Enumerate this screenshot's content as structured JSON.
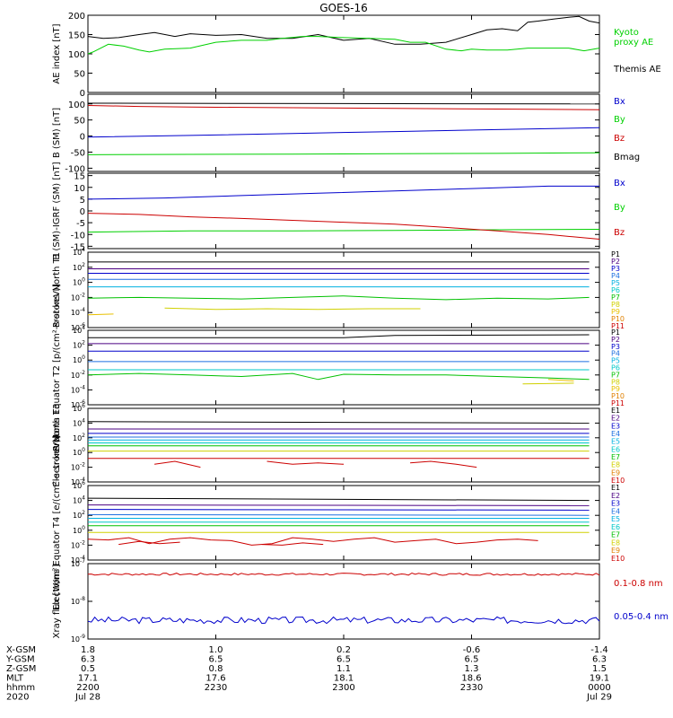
{
  "title": "GOES-16",
  "colors": {
    "black": "#000000",
    "green": "#00d000",
    "blue": "#0000cc",
    "red": "#cc0000",
    "p": [
      "#000000",
      "#4b0082",
      "#0000cc",
      "#1e6fe0",
      "#00b0e0",
      "#00c8c8",
      "#00c000",
      "#d0d000",
      "#e8c000",
      "#e08000",
      "#cc0000"
    ],
    "e": [
      "#000000",
      "#4b0082",
      "#0000cc",
      "#1e6fe0",
      "#00b0e0",
      "#00c8c8",
      "#00c000",
      "#d0d000",
      "#e08000",
      "#cc0000"
    ]
  },
  "chart_data": [
    {
      "type": "line",
      "id": "ae",
      "ylabel": "AE index [nT]",
      "ylim": [
        0,
        200
      ],
      "yticks": [
        "0",
        "50",
        "100",
        "150",
        "200"
      ],
      "legend": [
        {
          "text": "Kyoto",
          "color": "green"
        },
        {
          "text": "proxy AE",
          "color": "green"
        },
        {
          "text": "Themis AE",
          "color": "black"
        }
      ],
      "series": [
        {
          "color": "black",
          "x": [
            0,
            0.03,
            0.06,
            0.1,
            0.13,
            0.17,
            0.2,
            0.25,
            0.3,
            0.35,
            0.4,
            0.45,
            0.5,
            0.55,
            0.6,
            0.65,
            0.7,
            0.75,
            0.78,
            0.81,
            0.84,
            0.86,
            0.88,
            0.91,
            0.94,
            0.96,
            0.98,
            1.0
          ],
          "y": [
            145,
            140,
            142,
            150,
            155,
            145,
            152,
            148,
            150,
            140,
            140,
            150,
            135,
            140,
            125,
            125,
            130,
            150,
            162,
            165,
            160,
            182,
            185,
            190,
            195,
            197,
            185,
            180
          ]
        },
        {
          "color": "green",
          "x": [
            0,
            0.01,
            0.04,
            0.07,
            0.1,
            0.12,
            0.15,
            0.2,
            0.25,
            0.3,
            0.35,
            0.38,
            0.42,
            0.45,
            0.5,
            0.55,
            0.6,
            0.63,
            0.66,
            0.7,
            0.73,
            0.75,
            0.78,
            0.82,
            0.86,
            0.9,
            0.94,
            0.97,
            1.0
          ],
          "y": [
            100,
            105,
            125,
            120,
            110,
            105,
            112,
            115,
            130,
            135,
            135,
            140,
            145,
            145,
            142,
            140,
            138,
            130,
            130,
            112,
            108,
            112,
            110,
            110,
            115,
            115,
            115,
            108,
            115
          ]
        }
      ]
    },
    {
      "type": "line",
      "id": "b_sm",
      "ylabel": "B (SM) [nT]",
      "ylim": [
        -110,
        130
      ],
      "yticks": [
        "-100",
        "-50",
        "0",
        "50",
        "100"
      ],
      "ytickvals": [
        -100,
        -50,
        0,
        50,
        100
      ],
      "legend": [
        {
          "text": "Bx",
          "color": "blue"
        },
        {
          "text": "By",
          "color": "green"
        },
        {
          "text": "Bz",
          "color": "red"
        },
        {
          "text": "Bmag",
          "color": "black"
        }
      ],
      "series": [
        {
          "color": "black",
          "x": [
            0,
            1
          ],
          "y": [
            102,
            100
          ]
        },
        {
          "color": "red",
          "x": [
            0,
            0.1,
            0.2,
            0.4,
            0.6,
            0.8,
            1
          ],
          "y": [
            95,
            92,
            90,
            88,
            86,
            84,
            82
          ]
        },
        {
          "color": "blue",
          "x": [
            0,
            0.2,
            0.4,
            0.6,
            0.8,
            1
          ],
          "y": [
            -3,
            2,
            8,
            14,
            20,
            26
          ]
        },
        {
          "color": "green",
          "x": [
            0,
            0.2,
            0.4,
            0.6,
            0.8,
            1
          ],
          "y": [
            -58,
            -57,
            -56,
            -55,
            -54,
            -52
          ]
        }
      ]
    },
    {
      "type": "line",
      "id": "b_sm_igrf",
      "ylabel": "B (SM)-IGRF (SM) [nT]",
      "ylim": [
        -16,
        16
      ],
      "yticks": [
        "-15",
        "-10",
        "-5",
        "0",
        "5",
        "10",
        "15"
      ],
      "ytickvals": [
        -15,
        -10,
        -5,
        0,
        5,
        10,
        15
      ],
      "legend": [
        {
          "text": "Bx",
          "color": "blue"
        },
        {
          "text": "By",
          "color": "green"
        },
        {
          "text": "Bz",
          "color": "red"
        }
      ],
      "series": [
        {
          "color": "blue",
          "x": [
            0,
            0.15,
            0.3,
            0.45,
            0.6,
            0.75,
            0.9,
            1
          ],
          "y": [
            5,
            5.5,
            6.5,
            7.5,
            8.5,
            9.5,
            10.5,
            10.5
          ]
        },
        {
          "color": "green",
          "x": [
            0,
            0.2,
            0.4,
            0.6,
            0.8,
            1
          ],
          "y": [
            -9,
            -8.5,
            -8.5,
            -8.3,
            -8,
            -7.8
          ]
        },
        {
          "color": "red",
          "x": [
            0,
            0.1,
            0.2,
            0.3,
            0.4,
            0.5,
            0.6,
            0.7,
            0.8,
            0.9,
            0.95,
            1
          ],
          "y": [
            -1,
            -1.5,
            -2.5,
            -3.2,
            -4,
            -4.8,
            -5.6,
            -7,
            -8.5,
            -10,
            -11,
            -12
          ]
        }
      ]
    },
    {
      "type": "line",
      "id": "protons_t1",
      "log": true,
      "ylabel": "Protons North T1",
      "ylim": [
        -6,
        4
      ],
      "ytickvals": [
        -6,
        -4,
        -2,
        0,
        2,
        4
      ],
      "legend": [
        "P1",
        "P2",
        "P3",
        "P4",
        "P5",
        "P6",
        "P7",
        "P8",
        "P9",
        "P10",
        "P11"
      ],
      "series": [
        {
          "color": 0,
          "x": [
            0,
            0.98
          ],
          "y": [
            2.7,
            2.7
          ]
        },
        {
          "color": 1,
          "x": [
            0,
            0.98
          ],
          "y": [
            1.8,
            1.8
          ]
        },
        {
          "color": 2,
          "x": [
            0,
            0.98
          ],
          "y": [
            1.2,
            1.2
          ]
        },
        {
          "color": 3,
          "x": [
            0,
            0.98
          ],
          "y": [
            0.4,
            0.4
          ]
        },
        {
          "color": 4,
          "x": [
            0,
            0.98
          ],
          "y": [
            -0.6,
            -0.6
          ]
        },
        {
          "color": 6,
          "x": [
            0,
            0.1,
            0.2,
            0.3,
            0.4,
            0.5,
            0.6,
            0.7,
            0.8,
            0.9,
            0.98
          ],
          "y": [
            -2.1,
            -2,
            -2.1,
            -2.2,
            -2,
            -1.8,
            -2.1,
            -2.3,
            -2.1,
            -2.2,
            -2
          ]
        },
        {
          "color": 7,
          "x": [
            0.15,
            0.25,
            0.35,
            0.45,
            0.55,
            0.65
          ],
          "y": [
            -3.4,
            -3.6,
            -3.5,
            -3.6,
            -3.5,
            -3.5
          ]
        },
        {
          "color": 8,
          "x": [
            0,
            0.05
          ],
          "y": [
            -4.3,
            -4.2
          ]
        }
      ]
    },
    {
      "type": "line",
      "id": "protons_t2",
      "log": true,
      "ylabel": "Protons Equator T2 [p/(cm²-s-sr-keV)]",
      "ylim": [
        -6,
        4
      ],
      "ytickvals": [
        -6,
        -4,
        -2,
        0,
        2,
        4
      ],
      "legend": [
        "P1",
        "P2",
        "P3",
        "P4",
        "P5",
        "P6",
        "P7",
        "P8",
        "P9",
        "P10",
        "P11"
      ],
      "series": [
        {
          "color": 0,
          "x": [
            0,
            0.5,
            0.6,
            0.98
          ],
          "y": [
            3,
            3,
            3.3,
            3.4
          ]
        },
        {
          "color": 1,
          "x": [
            0,
            0.98
          ],
          "y": [
            2.2,
            2.2
          ]
        },
        {
          "color": 2,
          "x": [
            0,
            0.98
          ],
          "y": [
            1.2,
            1.2
          ]
        },
        {
          "color": 3,
          "x": [
            0,
            0.98
          ],
          "y": [
            -0.2,
            -0.2
          ]
        },
        {
          "color": 5,
          "x": [
            0,
            0.98
          ],
          "y": [
            -1.3,
            -1.3
          ]
        },
        {
          "color": 6,
          "x": [
            0,
            0.1,
            0.2,
            0.3,
            0.4,
            0.45,
            0.5,
            0.6,
            0.7,
            0.8,
            0.9,
            0.98
          ],
          "y": [
            -2,
            -1.8,
            -2,
            -2.2,
            -1.8,
            -2.6,
            -1.9,
            -2,
            -2,
            -2.2,
            -2.4,
            -2.6
          ]
        },
        {
          "color": 7,
          "x": [
            0.85,
            0.95
          ],
          "y": [
            -3.2,
            -3.1
          ]
        },
        {
          "color": 8,
          "x": [
            0.9,
            0.95
          ],
          "y": [
            -2.6,
            -2.8
          ]
        }
      ]
    },
    {
      "type": "line",
      "id": "electrons_t3",
      "log": true,
      "ylabel": "Electrons North T3",
      "ylim": [
        -4,
        6
      ],
      "ytickvals": [
        -4,
        -2,
        0,
        2,
        4,
        6
      ],
      "legend": [
        "E1",
        "E2",
        "E3",
        "E4",
        "E5",
        "E6",
        "E7",
        "E8",
        "E9",
        "E10"
      ],
      "series": [
        {
          "color": 0,
          "x": [
            0,
            0.98
          ],
          "y": [
            4.2,
            4.0
          ]
        },
        {
          "color": 1,
          "x": [
            0,
            0.98
          ],
          "y": [
            3.2,
            3.2
          ]
        },
        {
          "color": 2,
          "x": [
            0,
            0.98
          ],
          "y": [
            2.6,
            2.6
          ]
        },
        {
          "color": 3,
          "x": [
            0,
            0.98
          ],
          "y": [
            2.1,
            2.1
          ]
        },
        {
          "color": 4,
          "x": [
            0,
            0.98
          ],
          "y": [
            1.7,
            1.7
          ]
        },
        {
          "color": 5,
          "x": [
            0,
            0.98
          ],
          "y": [
            1.3,
            1.3
          ]
        },
        {
          "color": 6,
          "x": [
            0,
            0.98
          ],
          "y": [
            0.9,
            0.9
          ]
        },
        {
          "color": 7,
          "x": [
            0,
            0.98
          ],
          "y": [
            0.2,
            0.2
          ]
        },
        {
          "color": 9,
          "x": [
            0,
            0.98
          ],
          "y": [
            -0.8,
            -0.8
          ]
        },
        {
          "color": 9,
          "x": [
            0.13,
            0.17,
            0.22
          ],
          "y": [
            -1.6,
            -1.2,
            -2.0
          ]
        },
        {
          "color": 9,
          "x": [
            0.35,
            0.4,
            0.45,
            0.5
          ],
          "y": [
            -1.2,
            -1.6,
            -1.4,
            -1.6
          ]
        },
        {
          "color": 9,
          "x": [
            0.63,
            0.67,
            0.72,
            0.76
          ],
          "y": [
            -1.4,
            -1.2,
            -1.6,
            -2.0
          ]
        }
      ]
    },
    {
      "type": "line",
      "id": "electrons_t4",
      "log": true,
      "ylabel": "Electrons Equator T4 [e/(cm²-s-sr-keV)]",
      "ylim": [
        -4,
        6
      ],
      "ytickvals": [
        -4,
        -2,
        0,
        2,
        4,
        6
      ],
      "legend": [
        "E1",
        "E2",
        "E3",
        "E4",
        "E5",
        "E6",
        "E7",
        "E8",
        "E9",
        "E10"
      ],
      "series": [
        {
          "color": 0,
          "x": [
            0,
            0.98
          ],
          "y": [
            4.3,
            4.0
          ]
        },
        {
          "color": 1,
          "x": [
            0,
            0.98
          ],
          "y": [
            3.4,
            3.3
          ]
        },
        {
          "color": 2,
          "x": [
            0,
            0.98
          ],
          "y": [
            2.8,
            2.7
          ]
        },
        {
          "color": 3,
          "x": [
            0,
            0.98
          ],
          "y": [
            2.1,
            2.0
          ]
        },
        {
          "color": 4,
          "x": [
            0,
            0.98
          ],
          "y": [
            1.6,
            1.6
          ]
        },
        {
          "color": 5,
          "x": [
            0,
            0.98
          ],
          "y": [
            1.1,
            1.1
          ]
        },
        {
          "color": 6,
          "x": [
            0,
            0.98
          ],
          "y": [
            0.6,
            0.6
          ]
        },
        {
          "color": 7,
          "x": [
            0,
            0.98
          ],
          "y": [
            -0.3,
            -0.3
          ]
        },
        {
          "color": 9,
          "x": [
            0,
            0.04,
            0.08,
            0.12,
            0.16,
            0.2,
            0.24,
            0.28,
            0.32,
            0.36,
            0.4,
            0.44,
            0.48,
            0.52,
            0.56,
            0.6,
            0.64,
            0.68,
            0.72,
            0.76,
            0.8,
            0.84,
            0.88
          ],
          "y": [
            -1.2,
            -1.3,
            -1.0,
            -1.8,
            -1.2,
            -1.0,
            -1.3,
            -1.4,
            -2.0,
            -1.8,
            -1.0,
            -1.2,
            -1.5,
            -1.2,
            -1.0,
            -1.6,
            -1.4,
            -1.2,
            -1.8,
            -1.6,
            -1.3,
            -1.2,
            -1.4
          ]
        },
        {
          "color": 9,
          "x": [
            0.06,
            0.1,
            0.14,
            0.18
          ],
          "y": [
            -1.9,
            -1.5,
            -1.8,
            -1.6
          ]
        },
        {
          "color": 9,
          "x": [
            0.34,
            0.38,
            0.42,
            0.46
          ],
          "y": [
            -1.9,
            -2.0,
            -1.7,
            -1.9
          ]
        }
      ]
    },
    {
      "type": "line",
      "id": "xray",
      "log": true,
      "ylabel": "Xray flux [W/m²]",
      "ylim": [
        -9,
        -7
      ],
      "ytickvals": [
        -9,
        -8,
        -7
      ],
      "legend": [
        {
          "text": "0.1-0.8 nm",
          "color": "red"
        },
        {
          "text": "0.05-0.4 nm",
          "color": "blue"
        }
      ],
      "series": [
        {
          "color": "red",
          "noise": 0.03,
          "seed": 7,
          "base": -7.28,
          "x0": 0,
          "x1": 1
        },
        {
          "color": "blue",
          "noise": 0.09,
          "seed": 3,
          "base": -8.5,
          "x0": 0,
          "x1": 1
        }
      ]
    }
  ],
  "xaxis": {
    "rows": [
      {
        "label": "X-GSM",
        "values": [
          "1.8",
          "1.0",
          "0.2",
          "-0.6",
          "-1.4"
        ]
      },
      {
        "label": "Y-GSM",
        "values": [
          "6.3",
          "6.5",
          "6.5",
          "6.5",
          "6.3"
        ]
      },
      {
        "label": "Z-GSM",
        "values": [
          "0.5",
          "0.8",
          "1.1",
          "1.3",
          "1.5"
        ]
      },
      {
        "label": "MLT",
        "values": [
          "17.1",
          "17.6",
          "18.1",
          "18.6",
          "19.1"
        ]
      },
      {
        "label": "hhmm",
        "values": [
          "2200",
          "2230",
          "2300",
          "2330",
          "0000"
        ]
      },
      {
        "label": "2020",
        "values": [
          "Jul 28",
          "",
          "",
          "",
          "Jul 29"
        ]
      }
    ]
  }
}
